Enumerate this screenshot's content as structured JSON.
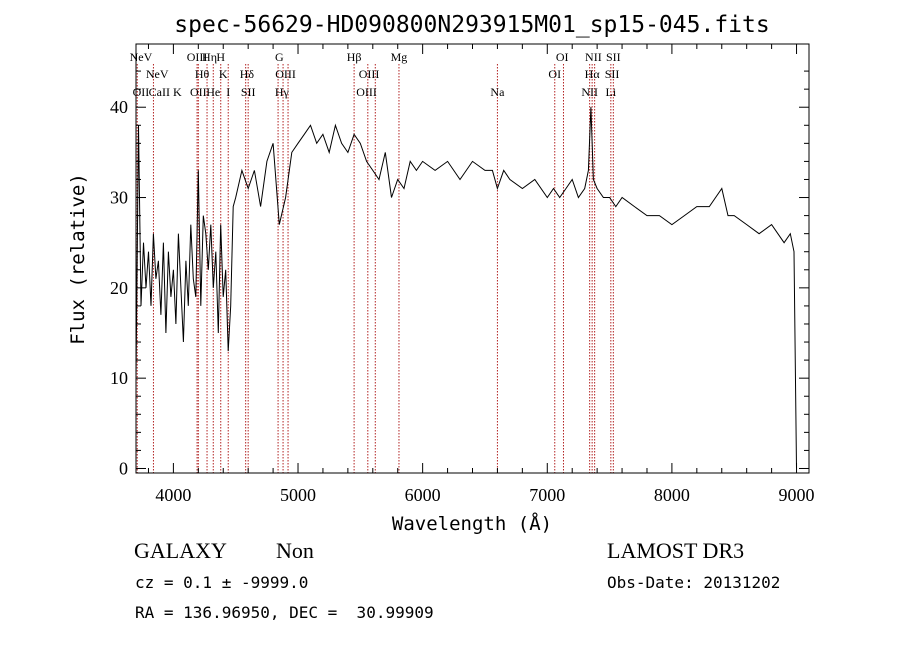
{
  "chart_data": {
    "type": "line",
    "title": "spec-56629-HD090800N293915M01_sp15-045.fits",
    "xlabel": "Wavelength (Å)",
    "ylabel": "Flux (relative)",
    "xlim": [
      3700,
      9100
    ],
    "ylim": [
      -0.5,
      47
    ],
    "x_ticks": [
      4000,
      5000,
      6000,
      7000,
      8000,
      9000
    ],
    "y_ticks": [
      0,
      10,
      20,
      30,
      40
    ],
    "grid": false,
    "line_color": "#000000",
    "marker_color": "#b22222",
    "series": [
      {
        "x": [
          3700,
          3720,
          3740,
          3760,
          3780,
          3800,
          3820,
          3840,
          3860,
          3880,
          3900,
          3920,
          3940,
          3960,
          3980,
          4000,
          4020,
          4040,
          4060,
          4080,
          4100,
          4120,
          4140,
          4160,
          4180,
          4200,
          4220,
          4240,
          4260,
          4280,
          4300,
          4320,
          4340,
          4360,
          4380,
          4400,
          4420,
          4440,
          4460,
          4480,
          4500,
          4550,
          4600,
          4650,
          4700,
          4750,
          4800,
          4850,
          4900,
          4950,
          5000,
          5050,
          5100,
          5150,
          5200,
          5250,
          5300,
          5350,
          5400,
          5450,
          5500,
          5550,
          5600,
          5650,
          5700,
          5750,
          5800,
          5850,
          5900,
          5950,
          6000,
          6100,
          6200,
          6300,
          6400,
          6500,
          6560,
          6600,
          6650,
          6700,
          6800,
          6900,
          7000,
          7050,
          7100,
          7150,
          7200,
          7250,
          7300,
          7330,
          7350,
          7370,
          7400,
          7450,
          7500,
          7550,
          7600,
          7700,
          7800,
          7900,
          8000,
          8100,
          8200,
          8300,
          8400,
          8450,
          8500,
          8600,
          8700,
          8800,
          8900,
          8950,
          8980,
          9000
        ],
        "y": [
          10,
          38,
          18,
          25,
          20,
          24,
          18,
          26,
          21,
          23,
          17,
          25,
          15,
          24,
          19,
          22,
          16,
          26,
          20,
          14,
          23,
          18,
          27,
          21,
          19,
          33,
          18,
          28,
          26,
          22,
          27,
          20,
          24,
          15,
          27,
          19,
          22,
          13,
          18,
          29,
          30,
          33,
          31,
          33,
          29,
          34,
          36,
          27,
          30,
          35,
          36,
          37,
          38,
          36,
          37,
          35,
          38,
          36,
          35,
          37,
          36,
          34,
          33,
          32,
          35,
          30,
          32,
          31,
          34,
          33,
          34,
          33,
          34,
          32,
          34,
          33,
          33,
          31,
          33,
          32,
          31,
          32,
          30,
          31,
          30,
          31,
          32,
          30,
          31,
          33,
          40,
          32,
          31,
          30,
          30,
          29,
          30,
          29,
          28,
          28,
          27,
          28,
          29,
          29,
          31,
          28,
          28,
          27,
          26,
          27,
          25,
          26,
          24,
          0
        ]
      }
    ],
    "line_markers": [
      {
        "label": "NeV",
        "x": 3426,
        "row": 0
      },
      {
        "label": "NeV",
        "x": 3870,
        "row": 1
      },
      {
        "label": "OII",
        "x": 3727,
        "row": 2
      },
      {
        "label": "CaII K",
        "x": 3934,
        "row": 2
      },
      {
        "label": "OIII",
        "x": 4190,
        "row": 0
      },
      {
        "label": "Hθ",
        "x": 4230,
        "row": 1
      },
      {
        "label": "OII",
        "x": 4200,
        "row": 2
      },
      {
        "label": "Hη",
        "x": 4290,
        "row": 0
      },
      {
        "label": "He",
        "x": 4320,
        "row": 2
      },
      {
        "label": "H",
        "x": 4380,
        "row": 0
      },
      {
        "label": "K",
        "x": 4400,
        "row": 1
      },
      {
        "label": "I",
        "x": 4440,
        "row": 2
      },
      {
        "label": "Hδ",
        "x": 4590,
        "row": 1
      },
      {
        "label": "SII",
        "x": 4600,
        "row": 2
      },
      {
        "label": "G",
        "x": 4850,
        "row": 0
      },
      {
        "label": "OIII",
        "x": 4900,
        "row": 1
      },
      {
        "label": "Hγ",
        "x": 4870,
        "row": 2
      },
      {
        "label": "Hβ",
        "x": 5450,
        "row": 0
      },
      {
        "label": "OIII",
        "x": 5570,
        "row": 1
      },
      {
        "label": "OIII",
        "x": 5550,
        "row": 2
      },
      {
        "label": "Mg",
        "x": 5810,
        "row": 0
      },
      {
        "label": "Na",
        "x": 6600,
        "row": 2
      },
      {
        "label": "OI",
        "x": 7120,
        "row": 0
      },
      {
        "label": "OI",
        "x": 7060,
        "row": 1
      },
      {
        "label": "NII",
        "x": 7370,
        "row": 0
      },
      {
        "label": "Hα",
        "x": 7360,
        "row": 1
      },
      {
        "label": "NII",
        "x": 7340,
        "row": 2
      },
      {
        "label": "SII",
        "x": 7530,
        "row": 0
      },
      {
        "label": "SII",
        "x": 7520,
        "row": 1
      },
      {
        "label": "Li",
        "x": 7510,
        "row": 2
      }
    ],
    "marker_lines_x": [
      3710,
      3840,
      4190,
      4200,
      4270,
      4320,
      4380,
      4440,
      4580,
      4600,
      4840,
      4880,
      4920,
      5450,
      5560,
      5620,
      5810,
      6600,
      7060,
      7130,
      7340,
      7360,
      7380,
      7510,
      7530
    ]
  },
  "footer": {
    "object_class": "GALAXY",
    "subclass": "Non",
    "survey": "LAMOST DR3",
    "redshift_line": "cz = 0.1 ± -9999.0",
    "obs_date_line": "Obs-Date: 20131202",
    "coords_line": "RA = 136.96950, DEC =  30.99909"
  }
}
